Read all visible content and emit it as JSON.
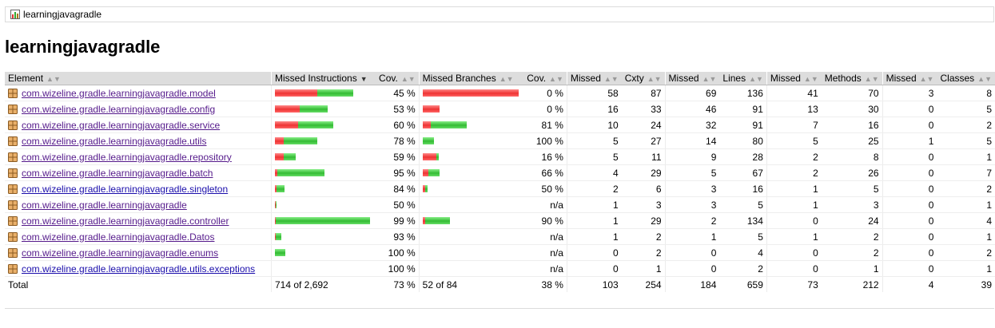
{
  "breadcrumb": {
    "label": "learningjavagradle",
    "icon": "report-icon"
  },
  "title": "learningjavagradle",
  "headers": {
    "element": "Element",
    "missed_instructions": "Missed Instructions",
    "cov_instr": "Cov.",
    "missed_branches": "Missed Branches",
    "cov_br": "Cov.",
    "missed_cxty": "Missed",
    "cxty": "Cxty",
    "missed_lines": "Missed",
    "lines": "Lines",
    "missed_methods": "Missed",
    "methods": "Methods",
    "missed_classes": "Missed",
    "classes": "Classes"
  },
  "colors": {
    "missed": "#e33333",
    "covered": "#33bb33",
    "header_bg": "#dddddd",
    "link": "#551a8b"
  },
  "rows": [
    {
      "name": "com.wizeline.gradle.learningjavagradle.model",
      "ibar": [
        53,
        45
      ],
      "icov": "45 %",
      "bbar": [
        120,
        0
      ],
      "bcov": "0 %",
      "mcx": "58",
      "cx": "87",
      "ml": "69",
      "l": "136",
      "mm": "41",
      "m": "70",
      "mc": "3",
      "c": "8"
    },
    {
      "name": "com.wizeline.gradle.learningjavagradle.config",
      "ibar": [
        31,
        35
      ],
      "icov": "53 %",
      "bbar": [
        21,
        0
      ],
      "bcov": "0 %",
      "mcx": "16",
      "cx": "33",
      "ml": "46",
      "l": "91",
      "mm": "13",
      "m": "30",
      "mc": "0",
      "c": "5"
    },
    {
      "name": "com.wizeline.gradle.learningjavagradle.service",
      "ibar": [
        29,
        44
      ],
      "icov": "60 %",
      "bbar": [
        10,
        45
      ],
      "bcov": "81 %",
      "mcx": "10",
      "cx": "24",
      "ml": "32",
      "l": "91",
      "mm": "7",
      "m": "16",
      "mc": "0",
      "c": "2"
    },
    {
      "name": "com.wizeline.gradle.learningjavagradle.utils",
      "ibar": [
        11,
        42
      ],
      "icov": "78 %",
      "bbar": [
        0,
        14
      ],
      "bcov": "100 %",
      "mcx": "5",
      "cx": "27",
      "ml": "14",
      "l": "80",
      "mm": "5",
      "m": "25",
      "mc": "1",
      "c": "5"
    },
    {
      "name": "com.wizeline.gradle.learningjavagradle.repository",
      "ibar": [
        11,
        15
      ],
      "icov": "59 %",
      "bbar": [
        17,
        3
      ],
      "bcov": "16 %",
      "mcx": "5",
      "cx": "11",
      "ml": "9",
      "l": "28",
      "mm": "2",
      "m": "8",
      "mc": "0",
      "c": "1"
    },
    {
      "name": "com.wizeline.gradle.learningjavagradle.batch",
      "ibar": [
        3,
        59
      ],
      "icov": "95 %",
      "bbar": [
        7,
        14
      ],
      "bcov": "66 %",
      "mcx": "4",
      "cx": "29",
      "ml": "5",
      "l": "67",
      "mm": "2",
      "m": "26",
      "mc": "0",
      "c": "7"
    },
    {
      "name": "com.wizeline.gradle.learningjavagradle.singleton",
      "ibar": [
        2,
        10
      ],
      "icov": "84 %",
      "bbar": [
        3,
        3
      ],
      "bcov": "50 %",
      "mcx": "2",
      "cx": "6",
      "ml": "3",
      "l": "16",
      "mm": "1",
      "m": "5",
      "mc": "0",
      "c": "2"
    },
    {
      "name": "com.wizeline.gradle.learningjavagradle",
      "ibar": [
        1,
        1
      ],
      "icov": "50 %",
      "bbar": [
        0,
        0
      ],
      "bcov": "n/a",
      "mcx": "1",
      "cx": "3",
      "ml": "3",
      "l": "5",
      "mm": "1",
      "m": "3",
      "mc": "0",
      "c": "1"
    },
    {
      "name": "com.wizeline.gradle.learningjavagradle.controller",
      "ibar": [
        1,
        118
      ],
      "icov": "99 %",
      "bbar": [
        3,
        31
      ],
      "bcov": "90 %",
      "mcx": "1",
      "cx": "29",
      "ml": "2",
      "l": "134",
      "mm": "0",
      "m": "24",
      "mc": "0",
      "c": "4"
    },
    {
      "name": "com.wizeline.gradle.learningjavagradle.Datos",
      "ibar": [
        1,
        7
      ],
      "icov": "93 %",
      "bbar": [
        0,
        0
      ],
      "bcov": "n/a",
      "mcx": "1",
      "cx": "2",
      "ml": "1",
      "l": "5",
      "mm": "1",
      "m": "2",
      "mc": "0",
      "c": "1"
    },
    {
      "name": "com.wizeline.gradle.learningjavagradle.enums",
      "ibar": [
        0,
        13
      ],
      "icov": "100 %",
      "bbar": [
        0,
        0
      ],
      "bcov": "n/a",
      "mcx": "0",
      "cx": "2",
      "ml": "0",
      "l": "4",
      "mm": "0",
      "m": "2",
      "mc": "0",
      "c": "2"
    },
    {
      "name": "com.wizeline.gradle.learningjavagradle.utils.exceptions",
      "ibar": [
        0,
        0
      ],
      "icov": "100 %",
      "bbar": [
        0,
        0
      ],
      "bcov": "n/a",
      "mcx": "0",
      "cx": "1",
      "ml": "0",
      "l": "2",
      "mm": "0",
      "m": "1",
      "mc": "0",
      "c": "1"
    }
  ],
  "total": {
    "label": "Total",
    "instr": "714 of 2,692",
    "icov": "73 %",
    "br": "52 of 84",
    "bcov": "38 %",
    "mcx": "103",
    "cx": "254",
    "ml": "184",
    "l": "659",
    "mm": "73",
    "m": "212",
    "mc": "4",
    "c": "39"
  }
}
